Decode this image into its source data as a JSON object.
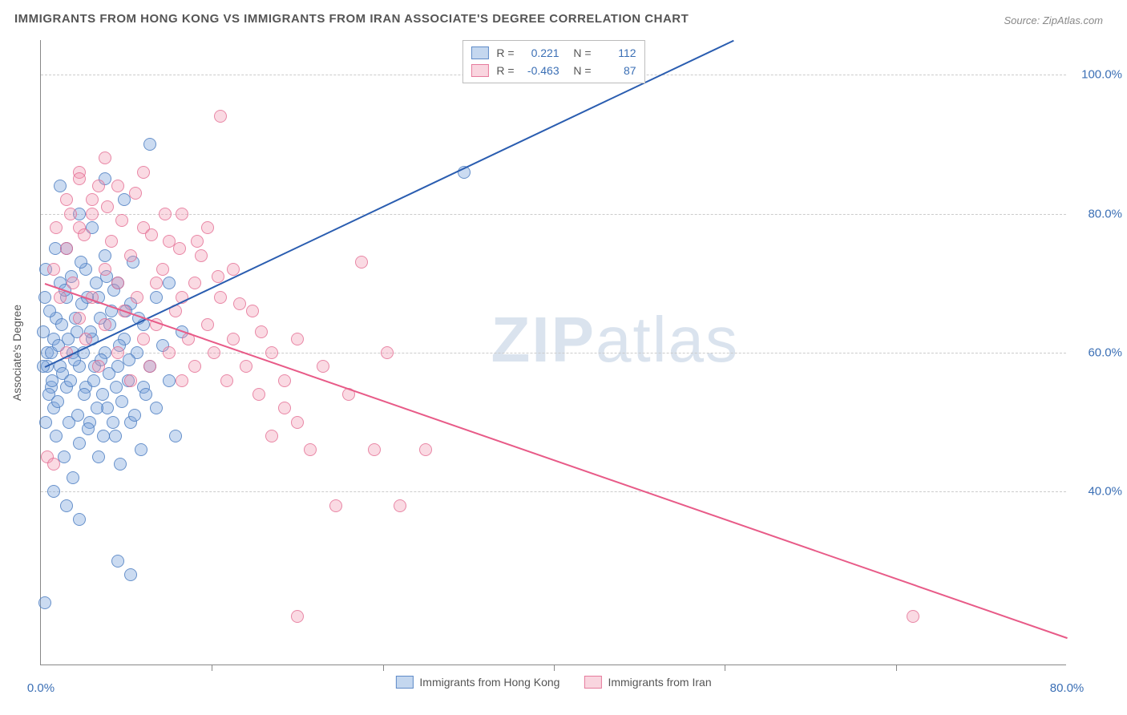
{
  "title": "IMMIGRANTS FROM HONG KONG VS IMMIGRANTS FROM IRAN ASSOCIATE'S DEGREE CORRELATION CHART",
  "source": "Source: ZipAtlas.com",
  "watermark_bold": "ZIP",
  "watermark_light": "atlas",
  "y_axis_label": "Associate's Degree",
  "chart": {
    "type": "scatter",
    "xlim": [
      0,
      80
    ],
    "ylim": [
      15,
      105
    ],
    "x_ticks": [
      0,
      80
    ],
    "x_tick_labels": [
      "0.0%",
      "80.0%"
    ],
    "x_minor_ticks": [
      13.3,
      26.7,
      40,
      53.3,
      66.7
    ],
    "y_ticks": [
      40,
      60,
      80,
      100
    ],
    "y_tick_labels": [
      "40.0%",
      "60.0%",
      "80.0%",
      "100.0%"
    ],
    "grid_color": "#cccccc",
    "background_color": "#ffffff",
    "axis_color": "#888888",
    "tick_label_color": "#3b6fb5",
    "marker_radius": 8,
    "series": [
      {
        "name": "Immigrants from Hong Kong",
        "color_fill": "rgba(124,166,220,0.4)",
        "color_stroke": "rgba(70,120,190,0.75)",
        "R": "0.221",
        "N": "112",
        "trend": {
          "x1": 0.3,
          "y1": 58,
          "x2": 54,
          "y2": 105,
          "color": "#2a5db0"
        },
        "points": [
          [
            0.5,
            58
          ],
          [
            0.5,
            60
          ],
          [
            0.8,
            55
          ],
          [
            1,
            52
          ],
          [
            1,
            62
          ],
          [
            1.2,
            65
          ],
          [
            1.2,
            48
          ],
          [
            1.5,
            58
          ],
          [
            1.5,
            70
          ],
          [
            1.8,
            45
          ],
          [
            2,
            55
          ],
          [
            2,
            68
          ],
          [
            2,
            75
          ],
          [
            2.2,
            50
          ],
          [
            2.5,
            60
          ],
          [
            2.5,
            42
          ],
          [
            2.8,
            63
          ],
          [
            3,
            58
          ],
          [
            3,
            47
          ],
          [
            3,
            80
          ],
          [
            3.2,
            67
          ],
          [
            3.5,
            55
          ],
          [
            3.5,
            72
          ],
          [
            3.8,
            50
          ],
          [
            4,
            62
          ],
          [
            4,
            78
          ],
          [
            4.2,
            58
          ],
          [
            4.5,
            45
          ],
          [
            4.5,
            68
          ],
          [
            4.8,
            54
          ],
          [
            5,
            60
          ],
          [
            5,
            74
          ],
          [
            5,
            85
          ],
          [
            5.2,
            52
          ],
          [
            5.5,
            66
          ],
          [
            5.8,
            48
          ],
          [
            6,
            58
          ],
          [
            6,
            70
          ],
          [
            6.2,
            44
          ],
          [
            6.5,
            62
          ],
          [
            6.5,
            82
          ],
          [
            6.8,
            56
          ],
          [
            7,
            50
          ],
          [
            7,
            67
          ],
          [
            7.2,
            73
          ],
          [
            7.5,
            60
          ],
          [
            7.8,
            46
          ],
          [
            8,
            64
          ],
          [
            8,
            55
          ],
          [
            8.5,
            58
          ],
          [
            8.5,
            90
          ],
          [
            9,
            52
          ],
          [
            9,
            68
          ],
          [
            9.5,
            61
          ],
          [
            10,
            56
          ],
          [
            10,
            70
          ],
          [
            10.5,
            48
          ],
          [
            11,
            63
          ],
          [
            1,
            40
          ],
          [
            2,
            38
          ],
          [
            3,
            36
          ],
          [
            1.5,
            84
          ],
          [
            0.3,
            24
          ],
          [
            6,
            30
          ],
          [
            7,
            28
          ],
          [
            0.2,
            63
          ],
          [
            0.2,
            58
          ],
          [
            0.3,
            68
          ],
          [
            0.4,
            50
          ],
          [
            0.4,
            72
          ],
          [
            0.6,
            54
          ],
          [
            0.7,
            66
          ],
          [
            0.8,
            60
          ],
          [
            0.9,
            56
          ],
          [
            1.1,
            75
          ],
          [
            1.3,
            53
          ],
          [
            1.4,
            61
          ],
          [
            1.6,
            64
          ],
          [
            1.7,
            57
          ],
          [
            1.9,
            69
          ],
          [
            2.1,
            62
          ],
          [
            2.3,
            56
          ],
          [
            2.4,
            71
          ],
          [
            2.6,
            59
          ],
          [
            2.7,
            65
          ],
          [
            2.9,
            51
          ],
          [
            3.1,
            73
          ],
          [
            3.3,
            60
          ],
          [
            3.4,
            54
          ],
          [
            3.6,
            68
          ],
          [
            3.7,
            49
          ],
          [
            3.9,
            63
          ],
          [
            4.1,
            56
          ],
          [
            4.3,
            70
          ],
          [
            4.4,
            52
          ],
          [
            4.6,
            65
          ],
          [
            4.7,
            59
          ],
          [
            4.9,
            48
          ],
          [
            5.1,
            71
          ],
          [
            5.3,
            57
          ],
          [
            5.4,
            64
          ],
          [
            5.6,
            50
          ],
          [
            5.7,
            69
          ],
          [
            5.9,
            55
          ],
          [
            6.1,
            61
          ],
          [
            6.3,
            53
          ],
          [
            6.6,
            66
          ],
          [
            6.9,
            59
          ],
          [
            7.3,
            51
          ],
          [
            7.6,
            65
          ],
          [
            8.2,
            54
          ],
          [
            33,
            86
          ]
        ]
      },
      {
        "name": "Immigrants from Iran",
        "color_fill": "rgba(240,150,175,0.35)",
        "color_stroke": "rgba(225,100,140,0.7)",
        "R": "-0.463",
        "N": "87",
        "trend": {
          "x1": 0.3,
          "y1": 70,
          "x2": 80,
          "y2": 19,
          "color": "#e85b88"
        },
        "points": [
          [
            1,
            72
          ],
          [
            1.5,
            68
          ],
          [
            2,
            75
          ],
          [
            2,
            60
          ],
          [
            2.5,
            70
          ],
          [
            3,
            65
          ],
          [
            3,
            78
          ],
          [
            3.5,
            62
          ],
          [
            4,
            68
          ],
          [
            4,
            80
          ],
          [
            4.5,
            58
          ],
          [
            5,
            72
          ],
          [
            5,
            64
          ],
          [
            5.5,
            76
          ],
          [
            6,
            60
          ],
          [
            6,
            70
          ],
          [
            6.5,
            66
          ],
          [
            7,
            74
          ],
          [
            7,
            56
          ],
          [
            7.5,
            68
          ],
          [
            8,
            62
          ],
          [
            8,
            78
          ],
          [
            8.5,
            58
          ],
          [
            9,
            70
          ],
          [
            9,
            64
          ],
          [
            9.5,
            72
          ],
          [
            10,
            60
          ],
          [
            10,
            76
          ],
          [
            10.5,
            66
          ],
          [
            11,
            68
          ],
          [
            11,
            56
          ],
          [
            11.5,
            62
          ],
          [
            12,
            70
          ],
          [
            12,
            58
          ],
          [
            12.5,
            74
          ],
          [
            13,
            64
          ],
          [
            13.5,
            60
          ],
          [
            14,
            68
          ],
          [
            14.5,
            56
          ],
          [
            15,
            62
          ],
          [
            15,
            72
          ],
          [
            16,
            58
          ],
          [
            16.5,
            66
          ],
          [
            17,
            54
          ],
          [
            18,
            60
          ],
          [
            18,
            48
          ],
          [
            19,
            56
          ],
          [
            20,
            62
          ],
          [
            20,
            50
          ],
          [
            21,
            46
          ],
          [
            22,
            58
          ],
          [
            23,
            38
          ],
          [
            24,
            54
          ],
          [
            25,
            73
          ],
          [
            26,
            46
          ],
          [
            27,
            60
          ],
          [
            28,
            38
          ],
          [
            30,
            46
          ],
          [
            14,
            94
          ],
          [
            8,
            86
          ],
          [
            6,
            84
          ],
          [
            5,
            88
          ],
          [
            4,
            82
          ],
          [
            3,
            86
          ],
          [
            11,
            80
          ],
          [
            13,
            78
          ],
          [
            20,
            22
          ],
          [
            68,
            22
          ],
          [
            0.5,
            45
          ],
          [
            1,
            44
          ],
          [
            2,
            82
          ],
          [
            3,
            85
          ],
          [
            4.5,
            84
          ],
          [
            1.2,
            78
          ],
          [
            2.3,
            80
          ],
          [
            3.4,
            77
          ],
          [
            5.2,
            81
          ],
          [
            6.3,
            79
          ],
          [
            7.4,
            83
          ],
          [
            8.6,
            77
          ],
          [
            9.7,
            80
          ],
          [
            10.8,
            75
          ],
          [
            12.2,
            76
          ],
          [
            13.8,
            71
          ],
          [
            15.5,
            67
          ],
          [
            17.2,
            63
          ],
          [
            19,
            52
          ]
        ]
      }
    ]
  },
  "bottom_legend": [
    {
      "label": "Immigrants from Hong Kong",
      "swatch": "blue"
    },
    {
      "label": "Immigrants from Iran",
      "swatch": "pink"
    }
  ]
}
